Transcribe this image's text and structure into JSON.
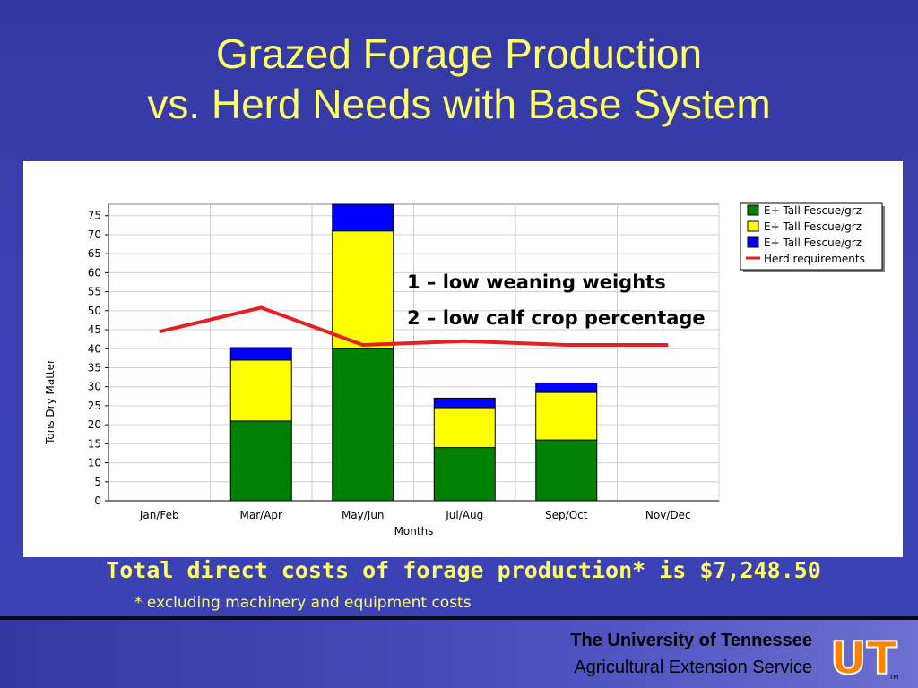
{
  "slide": {
    "title_line1": "Grazed Forage Production",
    "title_line2": "vs. Herd Needs with Base System",
    "cost_text": "Total direct costs of forage production* is $7,248.50",
    "footnote": "* excluding machinery and equipment costs",
    "footer_univ": "The University of Tennessee",
    "footer_service": "Agricultural Extension Service",
    "notes": [
      "1 – low weaning weights",
      "2 – low calf crop percentage"
    ],
    "logo_text": "UT",
    "logo_tm": "TM"
  },
  "colors": {
    "background": "#3b42b6",
    "title": "#ffff66",
    "series1": "#008000",
    "series2": "#ffff00",
    "series3": "#0000ff",
    "herd_line": "#e52020",
    "logo_orange": "#ff8200"
  },
  "chart_data": {
    "type": "bar",
    "stacked": true,
    "categories": [
      "Jan/Feb",
      "Mar/Apr",
      "May/Jun",
      "Jul/Aug",
      "Sep/Oct",
      "Nov/Dec"
    ],
    "series": [
      {
        "name": "E+ Tall Fescue/grz",
        "values": [
          0,
          21,
          40,
          14,
          16,
          0
        ]
      },
      {
        "name": "E+ Tall Fescue/grz",
        "values": [
          0,
          16,
          31,
          10.5,
          12.5,
          0
        ]
      },
      {
        "name": "E+ Tall Fescue/grz",
        "values": [
          0,
          3.3,
          8,
          2.5,
          2.5,
          0
        ]
      }
    ],
    "line_series": {
      "name": "Herd requirements",
      "values": [
        44.5,
        50.8,
        41,
        42,
        41,
        41
      ]
    },
    "xlabel": "Months",
    "ylabel": "Tons Dry Matter",
    "ylim": [
      0,
      78
    ],
    "yticks": [
      0,
      5,
      10,
      15,
      20,
      25,
      30,
      35,
      40,
      45,
      50,
      55,
      60,
      65,
      70,
      75
    ],
    "grid": true,
    "legend_position": "top-right"
  }
}
